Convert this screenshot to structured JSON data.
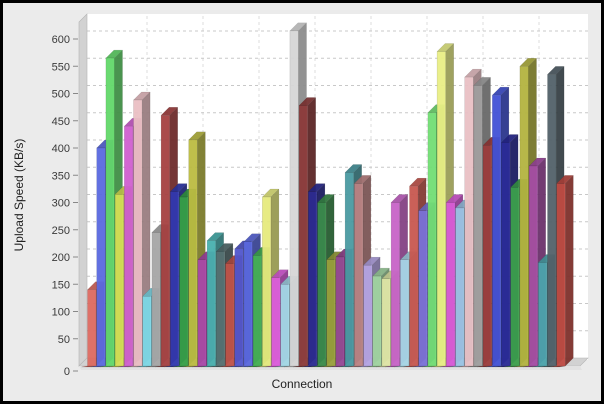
{
  "chart_data": {
    "type": "bar",
    "title": "",
    "xlabel": "Connection",
    "ylabel": "Upload Speed (KB/s)",
    "ylim": [
      0,
      650
    ],
    "yticks": [
      0,
      50,
      100,
      150,
      200,
      250,
      300,
      350,
      400,
      450,
      500,
      550,
      600
    ],
    "grid": "dashed gray horizontal lines every 50; faint dashed vertical separators",
    "legend": "none",
    "style": "3d-bars",
    "bars": [
      {
        "value": 140,
        "color": "#dd6a60"
      },
      {
        "value": 400,
        "color": "#5a6ae0"
      },
      {
        "value": 565,
        "color": "#63d96a"
      },
      {
        "value": 315,
        "color": "#d6de55"
      },
      {
        "value": 440,
        "color": "#d05fd0"
      },
      {
        "value": 488,
        "color": "#eabfc3"
      },
      {
        "value": 128,
        "color": "#7cd8e6"
      },
      {
        "value": 245,
        "color": "#a6a6a6"
      },
      {
        "value": 460,
        "color": "#a64242"
      },
      {
        "value": 320,
        "color": "#3038b0"
      },
      {
        "value": 310,
        "color": "#36a046"
      },
      {
        "value": 415,
        "color": "#bcbc42"
      },
      {
        "value": 195,
        "color": "#a848a8"
      },
      {
        "value": 230,
        "color": "#48b0ae"
      },
      {
        "value": 210,
        "color": "#566f70"
      },
      {
        "value": 188,
        "color": "#c05248"
      },
      {
        "value": 215,
        "color": "#5156cc"
      },
      {
        "value": 228,
        "color": "#5a68de"
      },
      {
        "value": 203,
        "color": "#44b052"
      },
      {
        "value": 310,
        "color": "#e6ea7e"
      },
      {
        "value": 162,
        "color": "#dc5adc"
      },
      {
        "value": 150,
        "color": "#a2d8e6"
      },
      {
        "value": 615,
        "color": "#d6d6d6"
      },
      {
        "value": 478,
        "color": "#8c3a3a"
      },
      {
        "value": 320,
        "color": "#2a2a92"
      },
      {
        "value": 300,
        "color": "#3a8c4a"
      },
      {
        "value": 195,
        "color": "#9aa03c"
      },
      {
        "value": 200,
        "color": "#964896"
      },
      {
        "value": 355,
        "color": "#4a9aa2"
      },
      {
        "value": 335,
        "color": "#bc8282"
      },
      {
        "value": 185,
        "color": "#b4a4e4"
      },
      {
        "value": 165,
        "color": "#a0d4a0"
      },
      {
        "value": 160,
        "color": "#dfe6a6"
      },
      {
        "value": 300,
        "color": "#c864c8"
      },
      {
        "value": 195,
        "color": "#a6d6e6"
      },
      {
        "value": 330,
        "color": "#c85850"
      },
      {
        "value": 285,
        "color": "#7a72d8"
      },
      {
        "value": 465,
        "color": "#72de74"
      },
      {
        "value": 577,
        "color": "#e9ef85"
      },
      {
        "value": 300,
        "color": "#d858d8"
      },
      {
        "value": 290,
        "color": "#9ac4e4"
      },
      {
        "value": 530,
        "color": "#e9c0c5"
      },
      {
        "value": 515,
        "color": "#9f9f9f"
      },
      {
        "value": 405,
        "color": "#9c3c3c"
      },
      {
        "value": 497,
        "color": "#4252d6"
      },
      {
        "value": 410,
        "color": "#2a2a96"
      },
      {
        "value": 328,
        "color": "#3ca04c"
      },
      {
        "value": 550,
        "color": "#b4b440"
      },
      {
        "value": 367,
        "color": "#a44ca4"
      },
      {
        "value": 190,
        "color": "#4ca4ac"
      },
      {
        "value": 535,
        "color": "#53626a"
      },
      {
        "value": 335,
        "color": "#bf4a42"
      }
    ]
  },
  "colors": {
    "frame": "#000000",
    "panel_bg": "#ebebeb",
    "plot_bg": "#ffffff",
    "wall": "#d2d2d2",
    "wall_edge": "#b5b5b5",
    "floor_bevel": "#e2e2e2",
    "gridline": "#c8c8c8",
    "vgridline": "#dcdcdc",
    "tick_text": "#3a3a3a"
  }
}
